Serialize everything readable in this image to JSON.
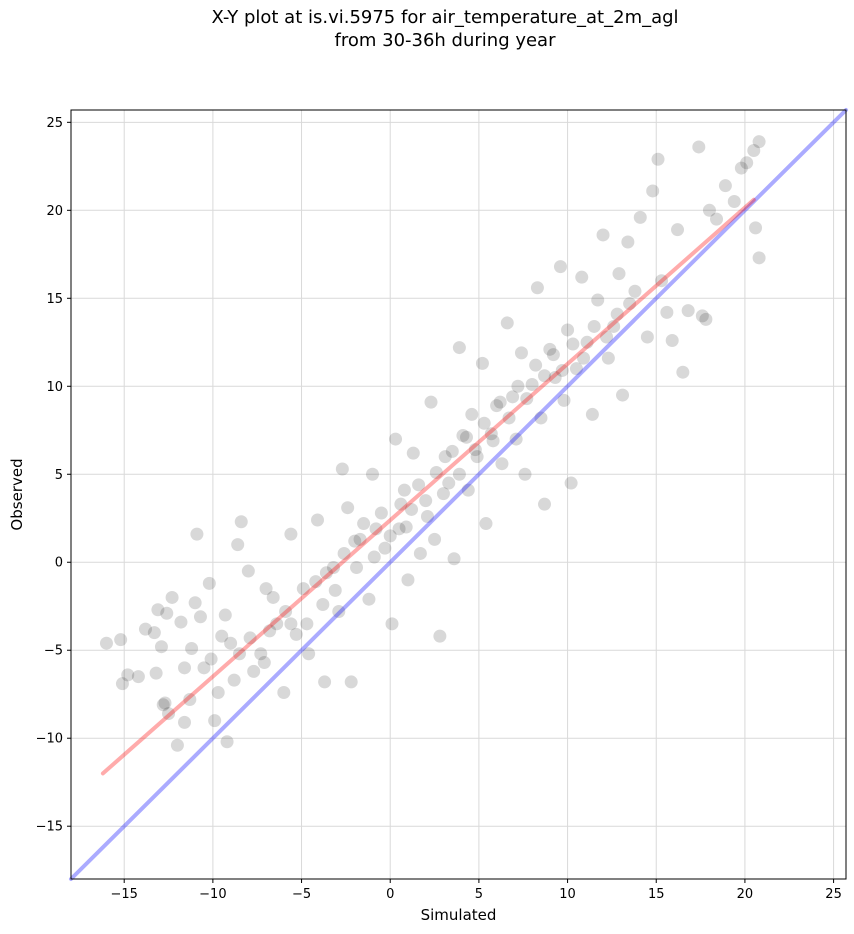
{
  "chart_data": {
    "type": "scatter",
    "title_line1": "X-Y plot at is.vi.5975 for air_temperature_at_2m_agl",
    "title_line2": "from 30-36h during year",
    "xlabel": "Simulated",
    "ylabel": "Observed",
    "xlim": [
      -18,
      25.7
    ],
    "ylim": [
      -18,
      25.7
    ],
    "x_ticks": [
      -15,
      -10,
      -5,
      0,
      5,
      10,
      15,
      20,
      25
    ],
    "y_ticks": [
      -15,
      -10,
      -5,
      0,
      5,
      10,
      15,
      20,
      25
    ],
    "x_tick_labels": [
      "−15",
      "−10",
      "−5",
      "0",
      "5",
      "10",
      "15",
      "20",
      "25"
    ],
    "y_tick_labels": [
      "−15",
      "−10",
      "−5",
      "0",
      "5",
      "10",
      "15",
      "20",
      "25"
    ],
    "grid": true,
    "series": [
      {
        "marker_color": "#000000",
        "marker_alpha": 0.07,
        "points": [
          [
            -16,
            -4.6
          ],
          [
            -15.2,
            -4.4
          ],
          [
            -15.1,
            -6.9
          ],
          [
            -14.8,
            -6.4
          ],
          [
            -13.8,
            -3.8
          ],
          [
            -13.3,
            -4.0
          ],
          [
            -13.1,
            -2.7
          ],
          [
            -12.6,
            -2.9
          ],
          [
            -13.2,
            -6.3
          ],
          [
            -12.8,
            -8.1
          ],
          [
            -12.5,
            -8.6
          ],
          [
            -12.0,
            -10.4
          ],
          [
            -11.6,
            -9.1
          ],
          [
            -11.8,
            -3.4
          ],
          [
            -11.2,
            -4.9
          ],
          [
            -11.0,
            -2.3
          ],
          [
            -10.7,
            -3.1
          ],
          [
            -10.9,
            1.6
          ],
          [
            -10.2,
            -1.2
          ],
          [
            -9.9,
            -9.0
          ],
          [
            -9.2,
            -10.2
          ],
          [
            -9.0,
            -4.6
          ],
          [
            -8.6,
            1.0
          ],
          [
            -8.4,
            2.3
          ],
          [
            -8.0,
            -0.5
          ],
          [
            -7.7,
            -6.2
          ],
          [
            -7.3,
            -5.2
          ],
          [
            -7.0,
            -1.5
          ],
          [
            -6.6,
            -2.0
          ],
          [
            -6.4,
            -3.5
          ],
          [
            -6.0,
            -7.4
          ],
          [
            -5.6,
            -3.5
          ],
          [
            -5.6,
            1.6
          ],
          [
            -4.9,
            -1.5
          ],
          [
            -4.6,
            -5.2
          ],
          [
            -4.1,
            2.4
          ],
          [
            -3.7,
            -6.8
          ],
          [
            -3.6,
            -0.6
          ],
          [
            -3.2,
            -0.3
          ],
          [
            -2.9,
            -2.8
          ],
          [
            -2.7,
            5.3
          ],
          [
            -2.2,
            -6.8
          ],
          [
            -2.4,
            3.1
          ],
          [
            -1.9,
            -0.3
          ],
          [
            -1.7,
            1.3
          ],
          [
            -1.2,
            -2.1
          ],
          [
            -1.0,
            5.0
          ],
          [
            -0.8,
            1.9
          ],
          [
            -0.3,
            0.8
          ],
          [
            0.1,
            -3.5
          ],
          [
            0.3,
            7.0
          ],
          [
            0.6,
            3.3
          ],
          [
            0.9,
            2.0
          ],
          [
            1.0,
            -1.0
          ],
          [
            1.3,
            6.2
          ],
          [
            1.7,
            0.5
          ],
          [
            2.0,
            3.5
          ],
          [
            2.3,
            9.1
          ],
          [
            2.5,
            1.3
          ],
          [
            2.8,
            -4.2
          ],
          [
            3.1,
            6.0
          ],
          [
            3.3,
            4.5
          ],
          [
            3.6,
            0.2
          ],
          [
            3.9,
            12.2
          ],
          [
            4.1,
            7.2
          ],
          [
            4.4,
            4.1
          ],
          [
            4.6,
            8.4
          ],
          [
            4.9,
            6.0
          ],
          [
            5.2,
            11.3
          ],
          [
            5.4,
            2.2
          ],
          [
            5.7,
            7.3
          ],
          [
            6.0,
            8.9
          ],
          [
            6.3,
            5.6
          ],
          [
            6.6,
            13.6
          ],
          [
            6.9,
            9.4
          ],
          [
            7.1,
            7.0
          ],
          [
            7.4,
            11.9
          ],
          [
            7.6,
            5.0
          ],
          [
            8.0,
            10.1
          ],
          [
            8.3,
            15.6
          ],
          [
            8.5,
            8.2
          ],
          [
            8.7,
            3.3
          ],
          [
            9.0,
            12.1
          ],
          [
            9.3,
            10.5
          ],
          [
            9.6,
            16.8
          ],
          [
            9.8,
            9.2
          ],
          [
            10.0,
            13.2
          ],
          [
            10.2,
            4.5
          ],
          [
            10.5,
            11.0
          ],
          [
            10.8,
            16.2
          ],
          [
            11.1,
            12.5
          ],
          [
            11.4,
            8.4
          ],
          [
            11.7,
            14.9
          ],
          [
            12.0,
            18.6
          ],
          [
            12.3,
            11.6
          ],
          [
            12.6,
            13.4
          ],
          [
            12.9,
            16.4
          ],
          [
            13.1,
            9.5
          ],
          [
            13.4,
            18.2
          ],
          [
            13.8,
            15.4
          ],
          [
            14.1,
            19.6
          ],
          [
            14.5,
            12.8
          ],
          [
            14.8,
            21.1
          ],
          [
            15.1,
            22.9
          ],
          [
            15.3,
            16.0
          ],
          [
            15.6,
            14.2
          ],
          [
            15.9,
            12.6
          ],
          [
            16.2,
            18.9
          ],
          [
            16.5,
            10.8
          ],
          [
            16.8,
            14.3
          ],
          [
            17.4,
            23.6
          ],
          [
            17.6,
            14.0
          ],
          [
            17.8,
            13.8
          ],
          [
            18.0,
            20.0
          ],
          [
            18.4,
            19.5
          ],
          [
            18.9,
            21.4
          ],
          [
            19.4,
            20.5
          ],
          [
            19.8,
            22.4
          ],
          [
            20.1,
            22.7
          ],
          [
            20.5,
            23.4
          ],
          [
            20.8,
            23.9
          ],
          [
            20.6,
            19.0
          ],
          [
            20.8,
            17.3
          ],
          [
            -12.7,
            -8.0
          ],
          [
            -12.3,
            -2.0
          ],
          [
            -14.2,
            -6.5
          ],
          [
            -9.3,
            -3.0
          ],
          [
            -8.5,
            -5.2
          ],
          [
            -7.9,
            -4.3
          ],
          [
            -7.1,
            -5.7
          ],
          [
            -6.8,
            -3.9
          ],
          [
            -5.9,
            -2.8
          ],
          [
            -5.3,
            -4.1
          ],
          [
            -4.7,
            -3.5
          ],
          [
            -4.2,
            -1.1
          ],
          [
            -3.8,
            -2.4
          ],
          [
            -3.1,
            -1.6
          ],
          [
            -2.6,
            0.5
          ],
          [
            -2.0,
            1.2
          ],
          [
            -1.5,
            2.2
          ],
          [
            -0.9,
            0.3
          ],
          [
            -0.5,
            2.8
          ],
          [
            0.0,
            1.5
          ],
          [
            0.5,
            1.9
          ],
          [
            0.8,
            4.1
          ],
          [
            1.2,
            3.0
          ],
          [
            1.6,
            4.4
          ],
          [
            2.1,
            2.6
          ],
          [
            2.6,
            5.1
          ],
          [
            3.0,
            3.9
          ],
          [
            3.5,
            6.3
          ],
          [
            3.9,
            5.0
          ],
          [
            4.3,
            7.1
          ],
          [
            4.8,
            6.4
          ],
          [
            5.3,
            7.9
          ],
          [
            5.8,
            6.9
          ],
          [
            6.2,
            9.1
          ],
          [
            6.7,
            8.2
          ],
          [
            7.2,
            10.0
          ],
          [
            7.7,
            9.3
          ],
          [
            8.2,
            11.2
          ],
          [
            8.7,
            10.6
          ],
          [
            9.2,
            11.8
          ],
          [
            9.7,
            10.9
          ],
          [
            10.3,
            12.4
          ],
          [
            10.9,
            11.6
          ],
          [
            11.5,
            13.4
          ],
          [
            12.2,
            12.8
          ],
          [
            12.8,
            14.1
          ],
          [
            13.5,
            14.7
          ],
          [
            -10.5,
            -6.0
          ],
          [
            -11.3,
            -7.8
          ],
          [
            -9.7,
            -7.4
          ],
          [
            -8.8,
            -6.7
          ],
          [
            -9.5,
            -4.2
          ],
          [
            -10.1,
            -5.5
          ],
          [
            -12.9,
            -4.8
          ],
          [
            -11.6,
            -6.0
          ]
        ]
      }
    ],
    "fit_line": {
      "color": "#ff0000",
      "alpha": 0.33,
      "x": [
        -16.2,
        20.5
      ],
      "y": [
        -12.0,
        20.6
      ]
    },
    "identity_line": {
      "color": "#0000ff",
      "alpha": 0.33,
      "x": [
        -18,
        25.7
      ],
      "y": [
        -18,
        25.7
      ]
    }
  }
}
